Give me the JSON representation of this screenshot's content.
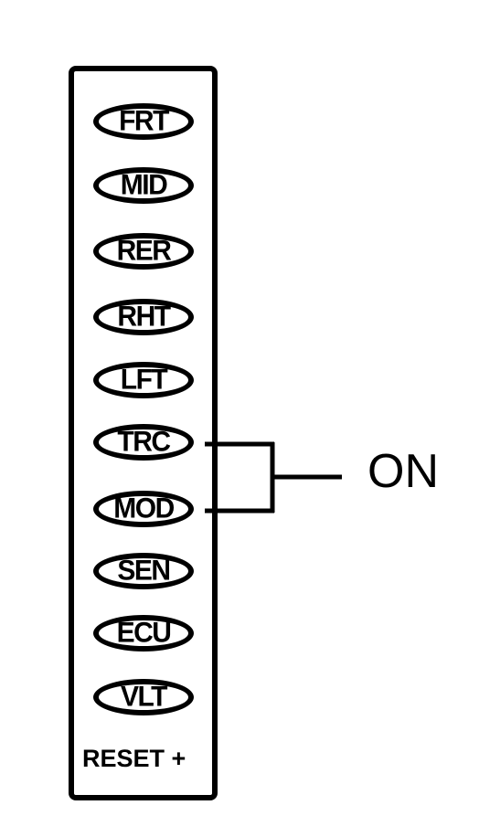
{
  "panel": {
    "buttons": [
      {
        "id": "frt",
        "label": "FRT"
      },
      {
        "id": "mid",
        "label": "MID"
      },
      {
        "id": "rer",
        "label": "RER"
      },
      {
        "id": "rht",
        "label": "RHT"
      },
      {
        "id": "lft",
        "label": "LFT"
      },
      {
        "id": "trc",
        "label": "TRC"
      },
      {
        "id": "mod",
        "label": "MOD"
      },
      {
        "id": "sen",
        "label": "SEN"
      },
      {
        "id": "ecu",
        "label": "ECU"
      },
      {
        "id": "vlt",
        "label": "VLT"
      }
    ],
    "reset_label": "RESET +"
  },
  "callout": {
    "label": "ON",
    "targets": [
      "TRC",
      "MOD"
    ]
  }
}
